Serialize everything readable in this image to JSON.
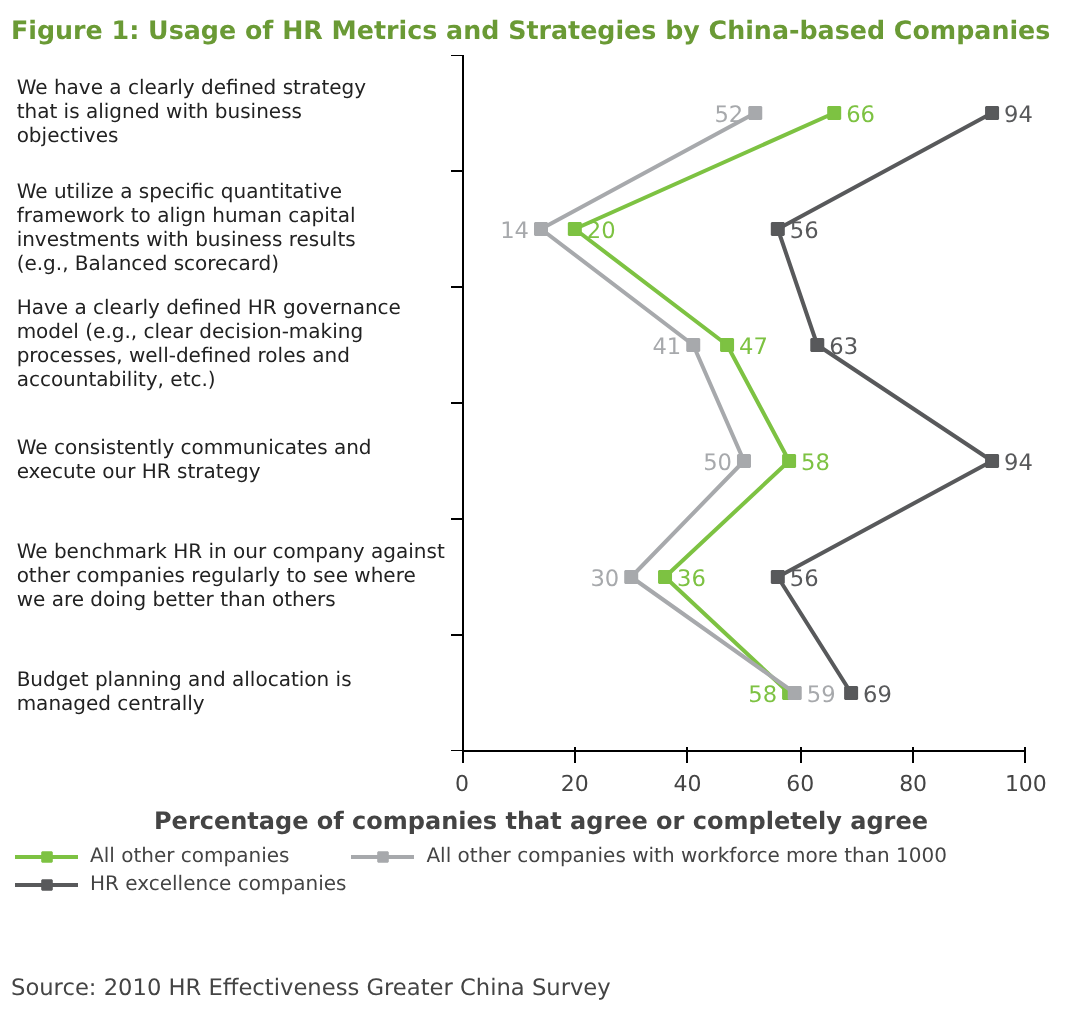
{
  "chart_data": {
    "type": "line",
    "orientation": "horizontal",
    "title": "Figure 1: Usage of HR Metrics and Strategies by China-based Companies",
    "categories": [
      "We have a clearly defined strategy that is aligned with business objectives",
      "We utilize a specific quantitative framework to align human capital investments with business results (e.g., Balanced scorecard)",
      "Have a clearly defined HR governance model (e.g., clear decision-making processes, well-defined roles and accountability, etc.)",
      "We consistently communicates and execute our HR strategy",
      "We benchmark HR in our company against other companies regularly to see where we are doing better than others",
      "Budget planning and allocation is managed centrally"
    ],
    "series": [
      {
        "name": "All other companies",
        "color": "#7dc242",
        "values": [
          66,
          20,
          47,
          58,
          36,
          58
        ]
      },
      {
        "name": "HR excellence companies",
        "color": "#58595b",
        "values": [
          94,
          56,
          63,
          94,
          56,
          69
        ]
      },
      {
        "name": "All other companies with workforce more than 1000",
        "color": "#a7a9ac",
        "values": [
          52,
          14,
          41,
          50,
          30,
          59
        ]
      }
    ],
    "xlim": [
      0,
      100
    ],
    "xticks": [
      0,
      20,
      40,
      60,
      80,
      100
    ],
    "xlabel": "Percentage of companies that agree or completely agree",
    "data_labels": true,
    "marker": "square",
    "legend": "bottom",
    "annotations": [
      "Source: 2010 HR Effectiveness Greater China Survey"
    ]
  }
}
